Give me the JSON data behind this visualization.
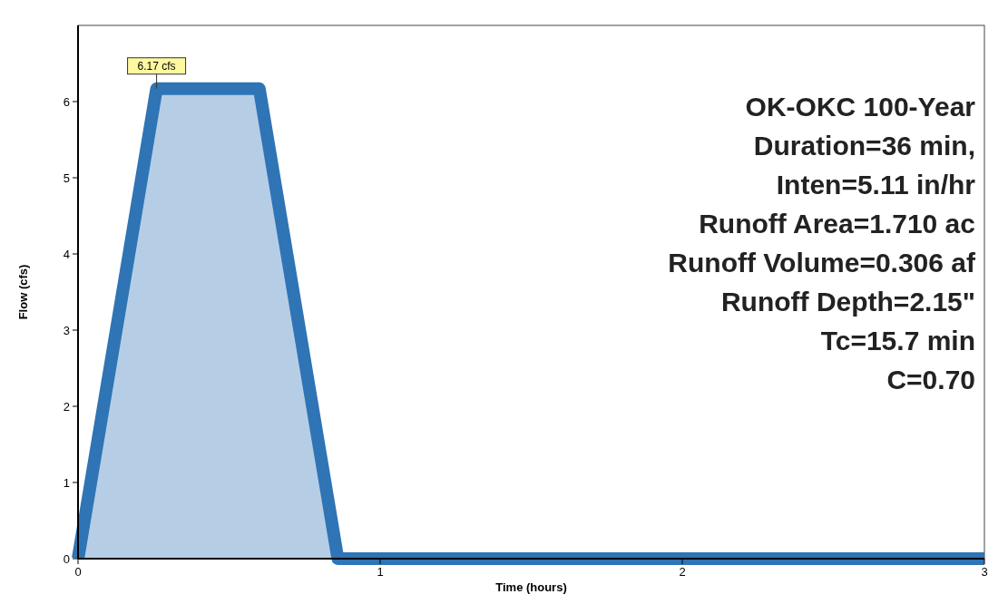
{
  "chart_data": {
    "type": "area",
    "xlabel": "Time  (hours)",
    "ylabel": "Flow  (cfs)",
    "x": [
      0,
      0.26,
      0.6,
      0.86,
      3
    ],
    "series": [
      {
        "color": "#2f74b5",
        "values": [
          0,
          6.17,
          6.17,
          0,
          0
        ]
      }
    ],
    "xlim": [
      0,
      3
    ],
    "xticks": [
      0,
      1,
      2,
      3
    ],
    "ylim": [
      0,
      7
    ],
    "yticks": [
      0,
      1,
      2,
      3,
      4,
      5,
      6
    ],
    "grid": false,
    "annotations": [
      {
        "text": "6.17 cfs",
        "x": 0.26,
        "y": 6.17
      },
      "OK-OKC 100-Year",
      "Duration=36 min,",
      "Inten=5.11 in/hr",
      "Runoff Area=1.710 ac",
      "Runoff Volume=0.306 af",
      "Runoff Depth=2.15\"",
      "Tc=15.7 min",
      "C=0.70"
    ]
  }
}
